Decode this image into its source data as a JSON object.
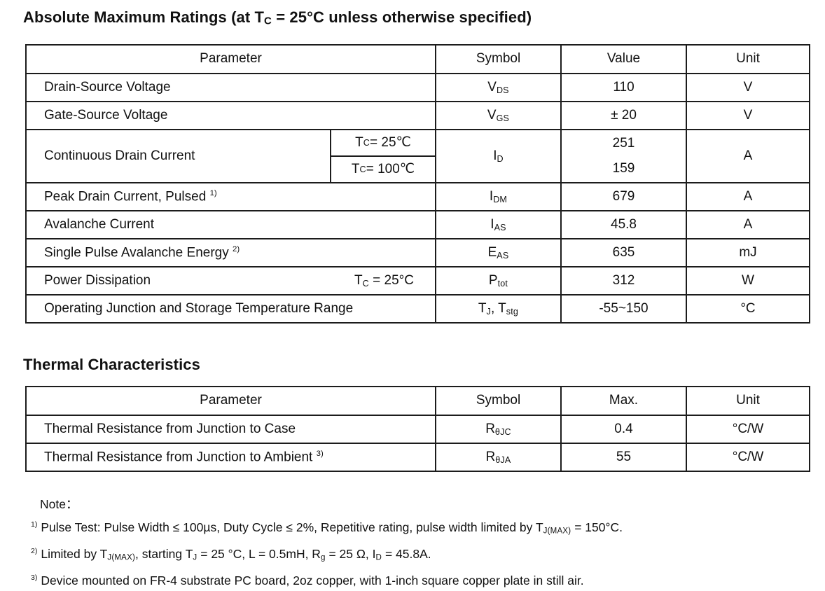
{
  "page": {
    "background": "#ffffff",
    "text_color": "#111111",
    "border_color": "#1c1c1c"
  },
  "ratings": {
    "title_rich": [
      [
        "Absolute Maximum Ratings (at T"
      ],
      [
        "C",
        "sub"
      ],
      [
        " = 25°C unless otherwise specified)"
      ]
    ],
    "columns": [
      "Parameter",
      "Symbol",
      "Value",
      "Unit"
    ],
    "rows": [
      {
        "param": [
          [
            "Drain-Source Voltage"
          ]
        ],
        "symbol": [
          [
            "V"
          ],
          [
            "DS",
            "sub"
          ]
        ],
        "value": [
          [
            "110"
          ]
        ],
        "unit": [
          [
            "V"
          ]
        ]
      },
      {
        "param": [
          [
            "Gate-Source Voltage"
          ]
        ],
        "symbol": [
          [
            "V"
          ],
          [
            "GS",
            "sub"
          ]
        ],
        "value": [
          [
            "± 20"
          ]
        ],
        "unit": [
          [
            "V"
          ]
        ]
      },
      {
        "type": "split",
        "param": [
          [
            "Continuous Drain Current"
          ]
        ],
        "conditions": [
          [
            [
              "T"
            ],
            [
              "C",
              "sub"
            ],
            [
              " = 25℃"
            ]
          ],
          [
            [
              "T"
            ],
            [
              "C",
              "sub"
            ],
            [
              " = 100℃"
            ]
          ]
        ],
        "symbol": [
          [
            "I"
          ],
          [
            "D",
            "sub"
          ]
        ],
        "values": [
          "251",
          "159"
        ],
        "unit": [
          [
            "A"
          ]
        ]
      },
      {
        "param": [
          [
            "Peak Drain Current, Pulsed "
          ],
          [
            "1)",
            "sup"
          ]
        ],
        "symbol": [
          [
            "I"
          ],
          [
            "DM",
            "sub"
          ]
        ],
        "value": [
          [
            "679"
          ]
        ],
        "unit": [
          [
            "A"
          ]
        ]
      },
      {
        "param": [
          [
            "Avalanche Current"
          ]
        ],
        "symbol": [
          [
            "I"
          ],
          [
            "AS",
            "sub"
          ]
        ],
        "value": [
          [
            "45.8"
          ]
        ],
        "unit": [
          [
            "A"
          ]
        ]
      },
      {
        "param": [
          [
            "Single Pulse Avalanche Energy "
          ],
          [
            "2)",
            "sup"
          ]
        ],
        "symbol": [
          [
            "E"
          ],
          [
            "AS",
            "sub"
          ]
        ],
        "value": [
          [
            "635"
          ]
        ],
        "unit": [
          [
            "mJ"
          ]
        ]
      },
      {
        "type": "inline-cond",
        "param": [
          [
            "Power Dissipation"
          ]
        ],
        "condition": [
          [
            "T"
          ],
          [
            "C",
            "sub"
          ],
          [
            " = 25°C"
          ]
        ],
        "symbol": [
          [
            "P"
          ],
          [
            "tot",
            "sub"
          ]
        ],
        "value": [
          [
            "312"
          ]
        ],
        "unit": [
          [
            "W"
          ]
        ]
      },
      {
        "param": [
          [
            "Operating Junction and Storage Temperature Range"
          ]
        ],
        "symbol": [
          [
            "T"
          ],
          [
            "J",
            "sub"
          ],
          [
            ", T"
          ],
          [
            "stg",
            "sub"
          ]
        ],
        "value": [
          [
            "-55~150"
          ]
        ],
        "unit": [
          [
            "°C"
          ]
        ]
      }
    ]
  },
  "thermal": {
    "title": "Thermal Characteristics",
    "columns": [
      "Parameter",
      "Symbol",
      "Max.",
      "Unit"
    ],
    "rows": [
      {
        "param": [
          [
            "Thermal Resistance from Junction to Case"
          ]
        ],
        "symbol": [
          [
            "R"
          ],
          [
            "θJC",
            "sub"
          ]
        ],
        "value": [
          [
            "0.4"
          ]
        ],
        "unit": [
          [
            "°C/W"
          ]
        ]
      },
      {
        "param": [
          [
            "Thermal Resistance from Junction to Ambient "
          ],
          [
            "3)",
            "sup"
          ]
        ],
        "symbol": [
          [
            "R"
          ],
          [
            "θJA",
            "sub"
          ]
        ],
        "value": [
          [
            "55"
          ]
        ],
        "unit": [
          [
            "°C/W"
          ]
        ]
      }
    ]
  },
  "notes": {
    "label": "Note：",
    "items": [
      {
        "marker": "1)",
        "segments": [
          [
            "Pulse Test: Pulse Width ≤ 100µs, Duty Cycle ≤ 2%, Repetitive rating, pulse width limited by T"
          ],
          [
            "J(MAX)",
            "sub"
          ],
          [
            " = 150°C."
          ]
        ]
      },
      {
        "marker": "2)",
        "segments": [
          [
            "Limited by T"
          ],
          [
            "J(MAX)",
            "sub"
          ],
          [
            ", starting T"
          ],
          [
            "J",
            "sub"
          ],
          [
            " = 25 °C, L = 0.5mH, R"
          ],
          [
            "g",
            "sub"
          ],
          [
            " = 25 Ω, I"
          ],
          [
            "D",
            "sub"
          ],
          [
            " = 45.8A."
          ]
        ]
      },
      {
        "marker": "3)",
        "segments": [
          [
            "Device mounted on FR-4 substrate PC board, 2oz copper, with 1-inch square copper plate in still air."
          ]
        ]
      }
    ]
  }
}
